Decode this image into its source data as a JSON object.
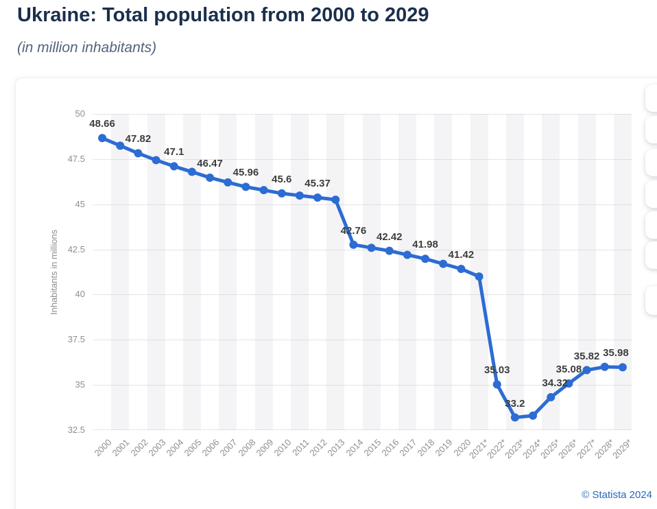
{
  "header": {
    "title": "Ukraine: Total population from 2000 to 2029",
    "subtitle": "(in million inhabitants)"
  },
  "footer": {
    "copyright": "© Statista 2024"
  },
  "side_toolbar": {
    "visible_buttons": 7
  },
  "chart_data": {
    "type": "line",
    "title": "Ukraine: Total population from 2000 to 2029",
    "subtitle": "(in million inhabitants)",
    "xlabel": "",
    "ylabel": "Inhabitants in millions",
    "ylim": [
      32.5,
      50
    ],
    "yticks": [
      50,
      47.5,
      45,
      42.5,
      40,
      37.5,
      35,
      32.5
    ],
    "grid": "horizontal-dotted",
    "background_stripes": "alternating vertical, odd year columns shaded",
    "legend": "none",
    "series_color": "#2c6cd3",
    "categories": [
      "2000",
      "2001",
      "2002",
      "2003",
      "2004",
      "2005",
      "2006",
      "2007",
      "2008",
      "2009",
      "2010",
      "2011",
      "2012",
      "2013",
      "2014",
      "2015",
      "2016",
      "2017",
      "2018",
      "2019",
      "2020",
      "2021*",
      "2022*",
      "2023*",
      "2024*",
      "2025*",
      "2026*",
      "2027*",
      "2028*",
      "2029*"
    ],
    "points": [
      {
        "year": "2000",
        "value": 48.66,
        "label": "48.66"
      },
      {
        "year": "2001",
        "value": 48.24,
        "label": null
      },
      {
        "year": "2002",
        "value": 47.82,
        "label": "47.82"
      },
      {
        "year": "2003",
        "value": 47.44,
        "label": null
      },
      {
        "year": "2004",
        "value": 47.1,
        "label": "47.1"
      },
      {
        "year": "2005",
        "value": 46.79,
        "label": null
      },
      {
        "year": "2006",
        "value": 46.47,
        "label": "46.47"
      },
      {
        "year": "2007",
        "value": 46.21,
        "label": null
      },
      {
        "year": "2008",
        "value": 45.96,
        "label": "45.96"
      },
      {
        "year": "2009",
        "value": 45.78,
        "label": null
      },
      {
        "year": "2010",
        "value": 45.6,
        "label": "45.6"
      },
      {
        "year": "2011",
        "value": 45.48,
        "label": null
      },
      {
        "year": "2012",
        "value": 45.37,
        "label": "45.37"
      },
      {
        "year": "2013",
        "value": 45.25,
        "label": null
      },
      {
        "year": "2014",
        "value": 42.76,
        "label": "42.76"
      },
      {
        "year": "2015",
        "value": 42.59,
        "label": null
      },
      {
        "year": "2016",
        "value": 42.42,
        "label": "42.42"
      },
      {
        "year": "2017",
        "value": 42.2,
        "label": null
      },
      {
        "year": "2018",
        "value": 41.98,
        "label": "41.98"
      },
      {
        "year": "2019",
        "value": 41.7,
        "label": null
      },
      {
        "year": "2020",
        "value": 41.42,
        "label": "41.42"
      },
      {
        "year": "2021*",
        "value": 41.0,
        "label": null
      },
      {
        "year": "2022*",
        "value": 35.03,
        "label": "35.03"
      },
      {
        "year": "2023*",
        "value": 33.2,
        "label": "33.2"
      },
      {
        "year": "2024*",
        "value": 33.3,
        "label": null
      },
      {
        "year": "2025*",
        "value": 34.32,
        "label": "34.32"
      },
      {
        "year": "2026*",
        "value": 35.08,
        "label": "35.08"
      },
      {
        "year": "2027*",
        "value": 35.82,
        "label": "35.82"
      },
      {
        "year": "2028*",
        "value": 36.0,
        "label": null
      },
      {
        "year": "2029*",
        "value": 35.98,
        "label": "35.98"
      }
    ],
    "label_offsets": {
      "2025*": [
        6,
        0
      ],
      "2029*": [
        -10,
        0
      ]
    }
  }
}
